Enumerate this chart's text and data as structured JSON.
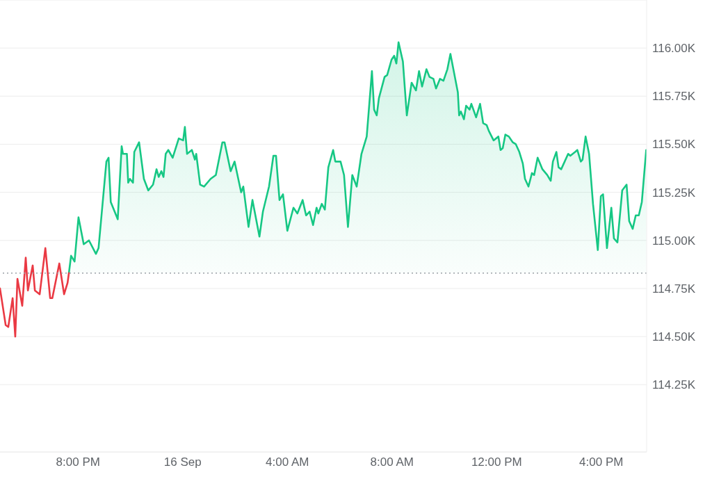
{
  "chart_data": {
    "type": "area",
    "xlim": [
      "--09-15T17:01",
      "--09-16T17:44"
    ],
    "xticks": [
      {
        "value": "--09-15T20:00",
        "label": "8:00 PM"
      },
      {
        "value": "--09-16T00:00",
        "label": "16 Sep"
      },
      {
        "value": "--09-16T04:00",
        "label": "4:00 AM"
      },
      {
        "value": "--09-16T08:00",
        "label": "8:00 AM"
      },
      {
        "value": "--09-16T12:00",
        "label": "12:00 PM"
      },
      {
        "value": "--09-16T16:00",
        "label": "4:00 PM"
      }
    ],
    "ylim": [
      113900,
      116250
    ],
    "yticks": [
      {
        "value": 114250,
        "label": "114.25K"
      },
      {
        "value": 114500,
        "label": "114.50K"
      },
      {
        "value": 114750,
        "label": "114.75K"
      },
      {
        "value": 115000,
        "label": "115.00K"
      },
      {
        "value": 115250,
        "label": "115.25K"
      },
      {
        "value": 115500,
        "label": "115.50K"
      },
      {
        "value": 115750,
        "label": "115.75K"
      },
      {
        "value": 116000,
        "label": "116.00K"
      }
    ],
    "grid": "y",
    "marker": "none",
    "line_style": "solid",
    "ref_lines": [
      {
        "axis": "y",
        "value": 114830,
        "line_style": "dotted",
        "color": "#9aa0a6"
      }
    ],
    "series": [
      {
        "type": "line",
        "color": "#ea3943",
        "x": [
          "--09-15T17:01",
          "--09-15T17:14",
          "--09-15T17:20",
          "--09-15T17:30",
          "--09-15T17:36",
          "--09-15T17:41",
          "--09-15T17:52",
          "--09-15T18:00",
          "--09-15T18:05",
          "--09-15T18:16",
          "--09-15T18:21",
          "--09-15T18:32",
          "--09-15T18:45",
          "--09-15T18:56",
          "--09-15T19:01",
          "--09-15T19:17",
          "--09-15T19:28",
          "--09-15T19:36",
          "--09-15T19:39"
        ],
        "values": [
          114750,
          114560,
          114550,
          114700,
          114500,
          114800,
          114660,
          114910,
          114740,
          114870,
          114740,
          114720,
          114960,
          114700,
          114700,
          114880,
          114720,
          114780,
          114830
        ]
      },
      {
        "color": "#16c784",
        "x": [
          "--09-15T19:39",
          "--09-15T19:44",
          "--09-15T19:52",
          "--09-15T20:01",
          "--09-15T20:13",
          "--09-15T20:25",
          "--09-15T20:41",
          "--09-15T20:47",
          "--09-15T21:05",
          "--09-15T21:10",
          "--09-15T21:15",
          "--09-15T21:31",
          "--09-15T21:40",
          "--09-15T21:43",
          "--09-15T21:52",
          "--09-15T21:55",
          "--09-15T21:59",
          "--09-15T22:06",
          "--09-15T22:09",
          "--09-15T22:20",
          "--09-15T22:31",
          "--09-15T22:41",
          "--09-15T22:52",
          "--09-15T23:00",
          "--09-15T23:05",
          "--09-15T23:11",
          "--09-15T23:16",
          "--09-15T23:21",
          "--09-15T23:27",
          "--09-15T23:37",
          "--09-15T23:51",
          "--09-16T00:01",
          "--09-16T00:05",
          "--09-16T00:10",
          "--09-16T00:21",
          "--09-16T00:28",
          "--09-16T00:31",
          "--09-16T00:40",
          "--09-16T00:49",
          "--09-16T01:04",
          "--09-16T01:16",
          "--09-16T01:31",
          "--09-16T01:36",
          "--09-16T01:50",
          "--09-16T01:59",
          "--09-16T02:14",
          "--09-16T02:19",
          "--09-16T02:31",
          "--09-16T02:40",
          "--09-16T02:56",
          "--09-16T03:04",
          "--09-16T03:18",
          "--09-16T03:28",
          "--09-16T03:34",
          "--09-16T03:42",
          "--09-16T03:50",
          "--09-16T04:00",
          "--09-16T04:14",
          "--09-16T04:23",
          "--09-16T04:35",
          "--09-16T04:43",
          "--09-16T04:51",
          "--09-16T04:59",
          "--09-16T05:07",
          "--09-16T05:11",
          "--09-16T05:19",
          "--09-16T05:26",
          "--09-16T05:34",
          "--09-16T05:45",
          "--09-16T05:50",
          "--09-16T06:02",
          "--09-16T06:10",
          "--09-16T06:19",
          "--09-16T06:29",
          "--09-16T06:39",
          "--09-16T06:50",
          "--09-16T07:02",
          "--09-16T07:14",
          "--09-16T07:19",
          "--09-16T07:25",
          "--09-16T07:30",
          "--09-16T07:43",
          "--09-16T07:49",
          "--09-16T07:59",
          "--09-16T08:05",
          "--09-16T08:10",
          "--09-16T08:15",
          "--09-16T08:25",
          "--09-16T08:34",
          "--09-16T08:45",
          "--09-16T08:55",
          "--09-16T09:02",
          "--09-16T09:09",
          "--09-16T09:19",
          "--09-16T09:26",
          "--09-16T09:35",
          "--09-16T09:41",
          "--09-16T09:50",
          "--09-16T09:58",
          "--09-16T10:07",
          "--09-16T10:14",
          "--09-16T10:31",
          "--09-16T10:34",
          "--09-16T10:38",
          "--09-16T10:45",
          "--09-16T10:50",
          "--09-16T10:58",
          "--09-16T11:02",
          "--09-16T11:13",
          "--09-16T11:22",
          "--09-16T11:29",
          "--09-16T11:37",
          "--09-16T11:42",
          "--09-16T11:53",
          "--09-16T12:04",
          "--09-16T12:09",
          "--09-16T12:14",
          "--09-16T12:20",
          "--09-16T12:28",
          "--09-16T12:37",
          "--09-16T12:44",
          "--09-16T12:52",
          "--09-16T13:00",
          "--09-16T13:05",
          "--09-16T13:13",
          "--09-16T13:21",
          "--09-16T13:26",
          "--09-16T13:34",
          "--09-16T13:45",
          "--09-16T13:56",
          "--09-16T14:04",
          "--09-16T14:09",
          "--09-16T14:17",
          "--09-16T14:22",
          "--09-16T14:28",
          "--09-16T14:36",
          "--09-16T14:44",
          "--09-16T14:49",
          "--09-16T15:00",
          "--09-16T15:05",
          "--09-16T15:13",
          "--09-16T15:17",
          "--09-16T15:24",
          "--09-16T15:32",
          "--09-16T15:41",
          "--09-16T15:52",
          "--09-16T15:59",
          "--09-16T16:04",
          "--09-16T16:13",
          "--09-16T16:23",
          "--09-16T16:29",
          "--09-16T16:37",
          "--09-16T16:48",
          "--09-16T16:58",
          "--09-16T17:04",
          "--09-16T17:12",
          "--09-16T17:19",
          "--09-16T17:26",
          "--09-16T17:33",
          "--09-16T17:43"
        ],
        "values": [
          114830,
          114920,
          114890,
          115120,
          114980,
          115000,
          114930,
          114960,
          115410,
          115430,
          115200,
          115110,
          115490,
          115450,
          115450,
          115300,
          115320,
          115300,
          115460,
          115510,
          115320,
          115260,
          115290,
          115370,
          115330,
          115360,
          115330,
          115450,
          115470,
          115430,
          115530,
          115520,
          115590,
          115450,
          115470,
          115420,
          115450,
          115290,
          115280,
          115320,
          115340,
          115510,
          115510,
          115360,
          115410,
          115250,
          115280,
          115070,
          115210,
          115020,
          115150,
          115280,
          115440,
          115440,
          115210,
          115240,
          115050,
          115170,
          115140,
          115210,
          115130,
          115150,
          115080,
          115170,
          115140,
          115190,
          115160,
          115380,
          115470,
          115410,
          115410,
          115340,
          115070,
          115340,
          115280,
          115450,
          115540,
          115880,
          115680,
          115650,
          115740,
          115850,
          115860,
          115940,
          115960,
          115920,
          116030,
          115930,
          115650,
          115820,
          115780,
          115880,
          115800,
          115890,
          115850,
          115840,
          115790,
          115840,
          115830,
          115890,
          115970,
          115770,
          115650,
          115670,
          115630,
          115700,
          115680,
          115710,
          115640,
          115710,
          115610,
          115600,
          115570,
          115520,
          115540,
          115470,
          115480,
          115550,
          115540,
          115510,
          115500,
          115460,
          115400,
          115320,
          115280,
          115350,
          115340,
          115430,
          115370,
          115340,
          115310,
          115410,
          115460,
          115380,
          115370,
          115410,
          115450,
          115440,
          115460,
          115470,
          115410,
          115420,
          115540,
          115450,
          115190,
          114950,
          115230,
          115240,
          114960,
          115170,
          115010,
          114990,
          115260,
          115290,
          115100,
          115060,
          115130,
          115130,
          115200,
          115470
        ]
      }
    ]
  }
}
